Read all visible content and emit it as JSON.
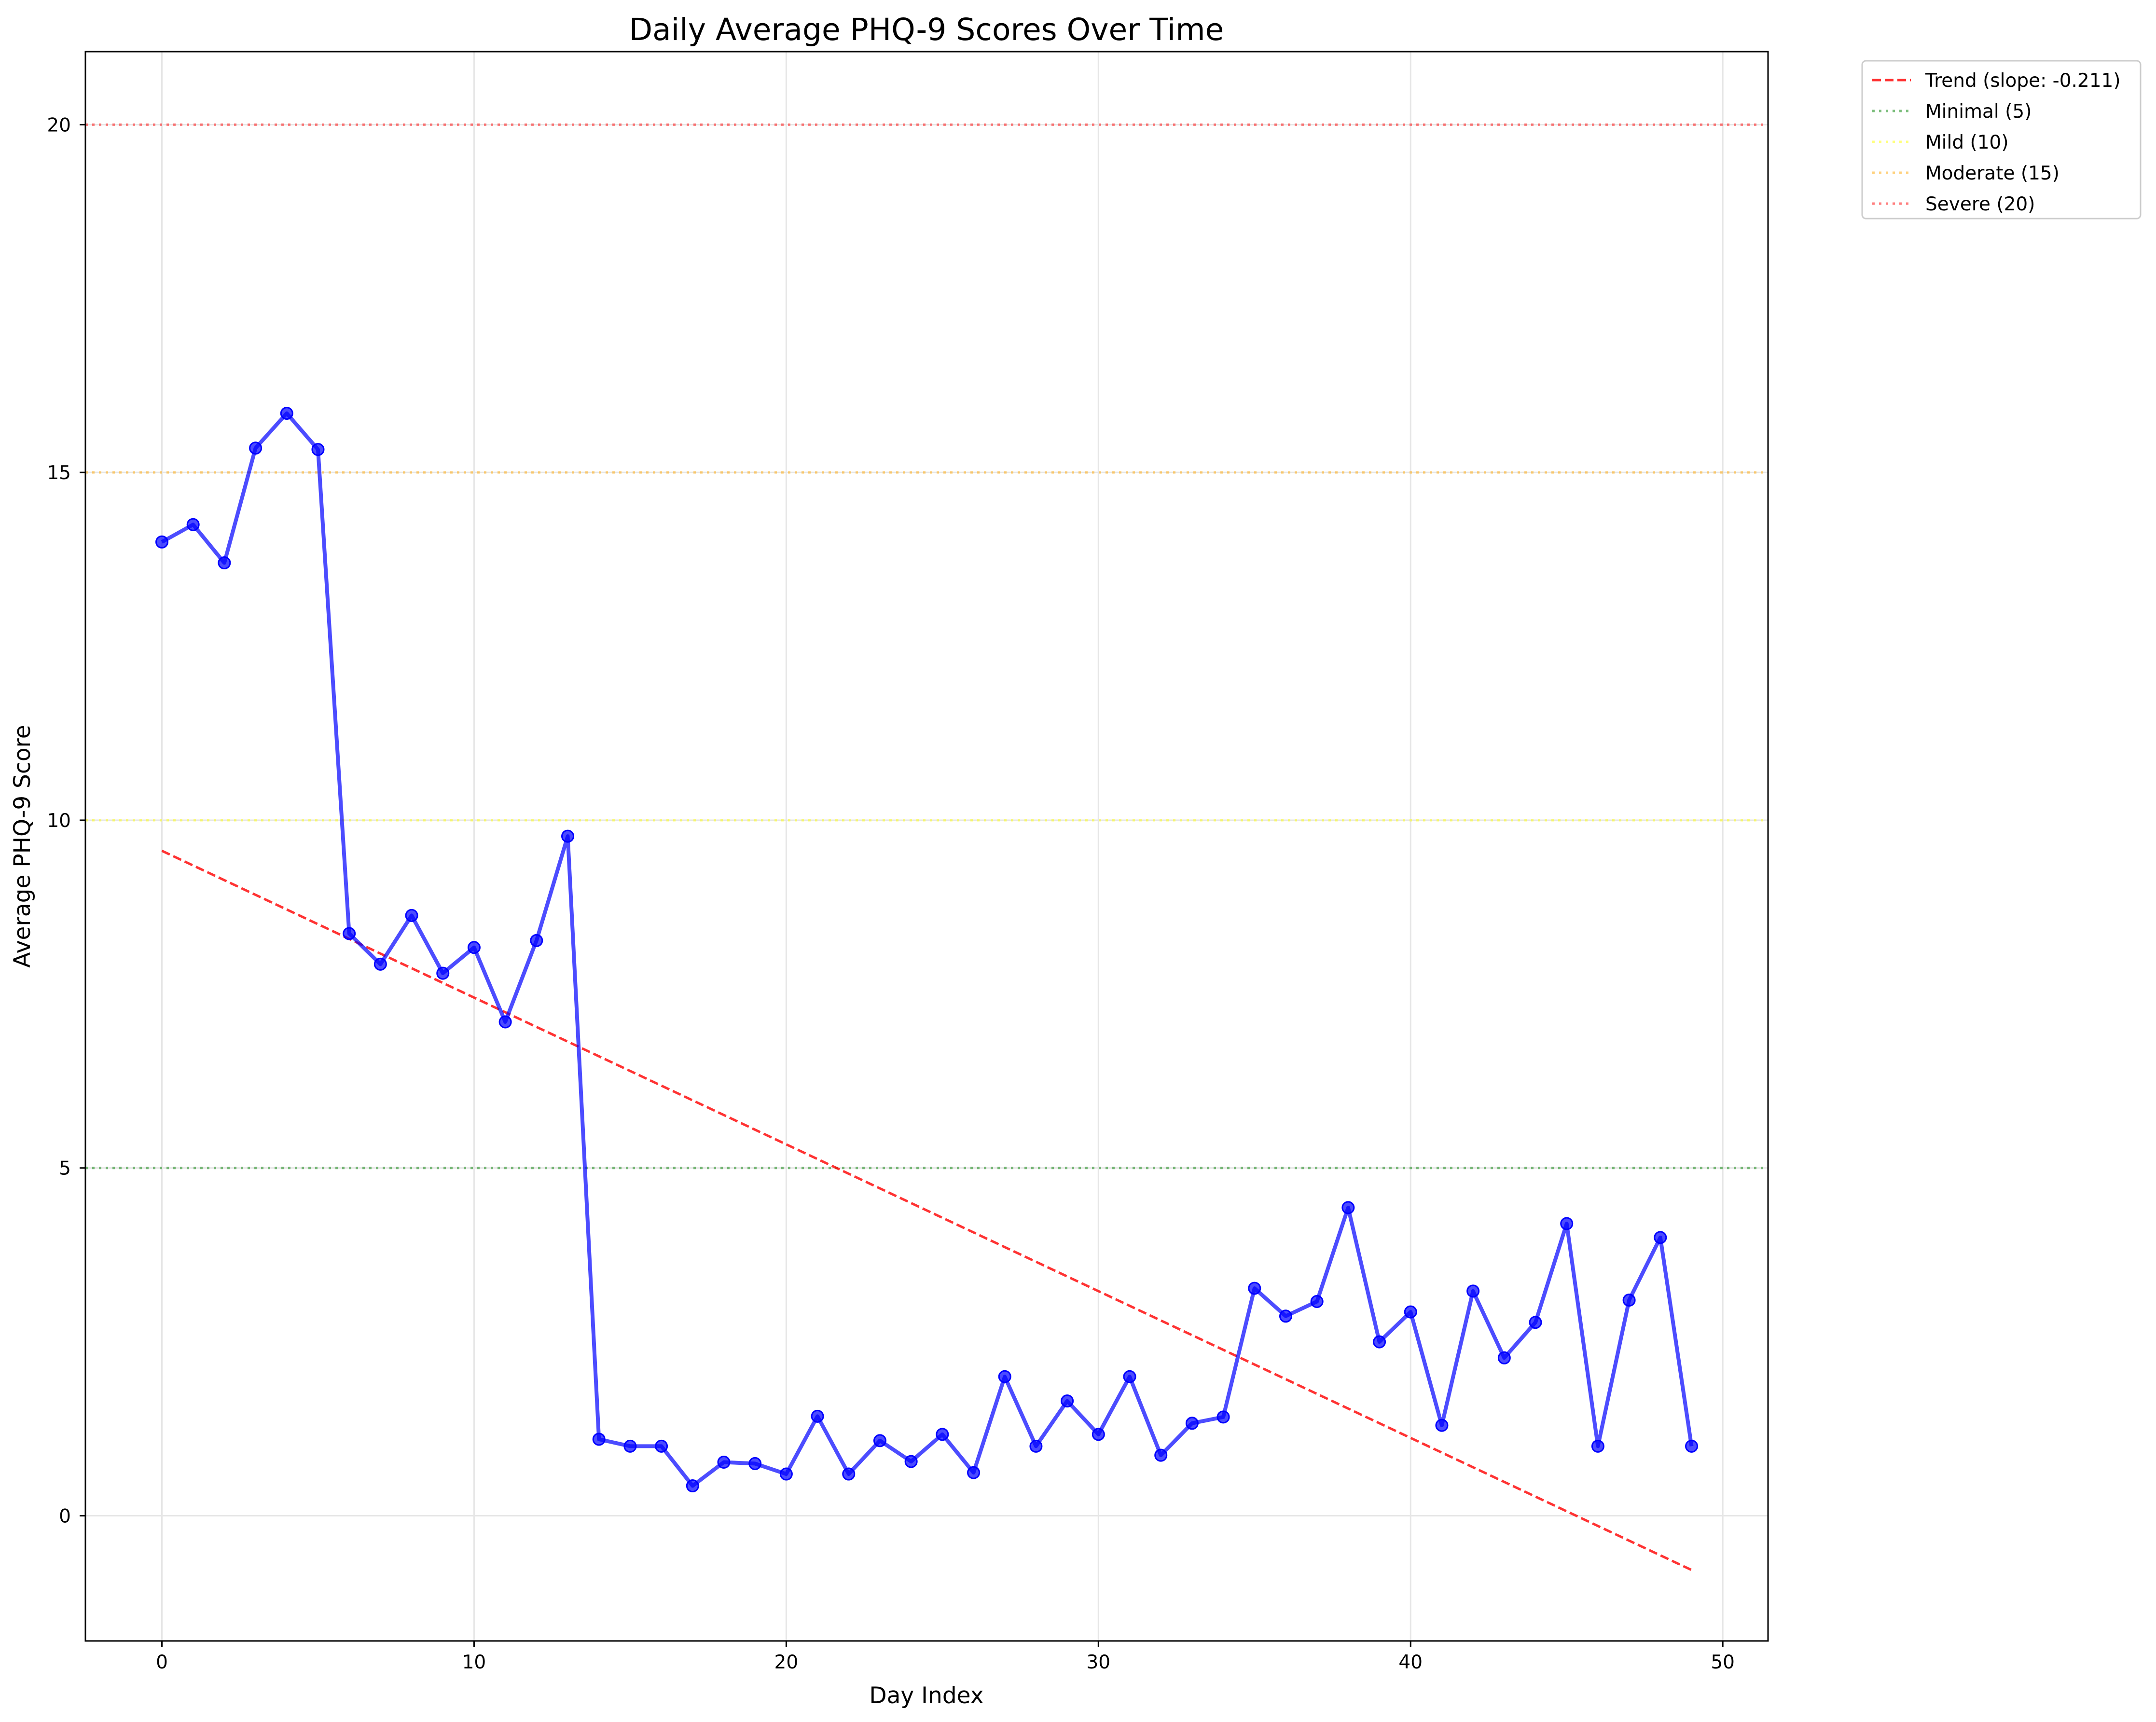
{
  "chart_data": {
    "type": "line",
    "title": "Daily Average PHQ-9 Scores Over Time",
    "xlabel": "Day Index",
    "ylabel": "Average PHQ-9 Score",
    "xlim": [
      -2.45,
      51.45
    ],
    "ylim": [
      -1.8,
      21.05
    ],
    "xticks": [
      "0",
      "10",
      "20",
      "30",
      "40",
      "50"
    ],
    "yticks": [
      "0",
      "5",
      "10",
      "15",
      "20"
    ],
    "grid": true,
    "legend_position": "outside-top-right",
    "series": [
      {
        "color": "#0000ff",
        "x": [
          0,
          1,
          2,
          3,
          4,
          5,
          6,
          7,
          8,
          9,
          10,
          11,
          12,
          13,
          14,
          15,
          16,
          17,
          18,
          19,
          20,
          21,
          22,
          23,
          24,
          25,
          26,
          27,
          28,
          29,
          30,
          31,
          32,
          33,
          34,
          35,
          36,
          37,
          38,
          39,
          40,
          41,
          42,
          43,
          44,
          45,
          46,
          47,
          48,
          49
        ],
        "y": [
          14.0,
          14.25,
          13.7,
          15.35,
          15.85,
          15.33,
          8.37,
          7.93,
          8.63,
          7.8,
          8.17,
          7.1,
          8.27,
          9.77,
          1.1,
          1.0,
          1.0,
          0.43,
          0.77,
          0.75,
          0.6,
          1.43,
          0.6,
          1.08,
          0.78,
          1.17,
          0.62,
          2.0,
          1.0,
          1.65,
          1.17,
          2.0,
          0.87,
          1.33,
          1.42,
          3.27,
          2.87,
          3.08,
          4.43,
          2.5,
          2.93,
          1.3,
          3.23,
          2.27,
          2.78,
          4.2,
          1.0,
          3.1,
          4.0,
          1.0
        ]
      },
      {
        "name": "Trend (slope: -0.211)",
        "color": "#ff0000",
        "style": "dashed",
        "x": [
          0,
          49
        ],
        "y": [
          9.56,
          -0.78
        ]
      }
    ],
    "reference_lines": [
      {
        "name": "Minimal (5)",
        "y": 5,
        "color": "#008000",
        "style": "dotted"
      },
      {
        "name": "Mild (10)",
        "y": 10,
        "color": "#ffff00",
        "style": "dotted"
      },
      {
        "name": "Moderate (15)",
        "y": 15,
        "color": "#ffa500",
        "style": "dotted"
      },
      {
        "name": "Severe (20)",
        "y": 20,
        "color": "#ff0000",
        "style": "dotted"
      }
    ]
  }
}
